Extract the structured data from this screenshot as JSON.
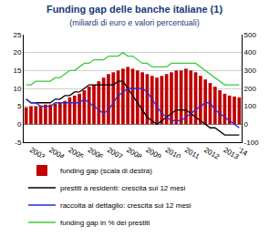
{
  "chart_data": {
    "type": "bar",
    "title": "Funding gap delle banche italiane (1)",
    "subtitle": "(miliardi di euro e valori percentuali)",
    "categories": [
      null,
      "2003",
      null,
      null,
      null,
      "2004",
      null,
      null,
      null,
      "2005",
      null,
      null,
      null,
      "2006",
      null,
      null,
      null,
      "2007",
      null,
      null,
      null,
      "2008",
      null,
      null,
      null,
      "2009",
      null,
      null,
      null,
      "2010",
      null,
      null,
      null,
      "2011",
      null,
      null,
      null,
      "2012",
      null,
      null,
      null,
      "2013",
      null,
      null,
      "'14"
    ],
    "series": [
      {
        "name": "funding gap (scala di destra)",
        "type": "bar",
        "axis": "y2",
        "color": "#c00000",
        "values": [
          95,
          100,
          100,
          105,
          110,
          110,
          115,
          120,
          130,
          150,
          160,
          170,
          190,
          210,
          220,
          240,
          260,
          280,
          290,
          300,
          310,
          320,
          310,
          300,
          290,
          280,
          270,
          260,
          270,
          280,
          290,
          300,
          300,
          310,
          300,
          290,
          270,
          250,
          230,
          210,
          190,
          170,
          160,
          155,
          150
        ]
      },
      {
        "name": "prestiti a residenti: crescita sui 12 mesi",
        "type": "line",
        "axis": "y",
        "color": "#000000",
        "values": [
          7,
          6,
          6,
          6,
          6,
          6,
          7,
          7,
          8,
          8,
          9,
          9,
          10,
          11,
          11,
          11,
          11,
          11,
          11,
          12,
          12,
          10,
          8,
          6,
          4,
          2,
          1,
          0,
          1,
          2,
          3,
          4,
          4,
          4,
          3,
          2,
          1,
          0,
          -1,
          -1,
          -2,
          -3,
          -3,
          -3,
          -3
        ]
      },
      {
        "name": "raccolta al dettaglio: crescita sui 12 mesi",
        "type": "line",
        "axis": "y",
        "color": "#2b2bd0",
        "values": [
          7,
          6,
          6,
          5,
          5,
          5,
          6,
          6,
          6,
          6,
          6,
          6,
          7,
          6,
          5,
          4,
          3,
          4,
          6,
          8,
          9,
          10,
          10,
          10,
          10,
          9,
          7,
          5,
          3,
          2,
          1,
          1,
          1,
          2,
          3,
          4,
          5,
          6,
          6,
          4,
          3,
          2,
          1,
          0,
          -1
        ]
      },
      {
        "name": "funding gap in % dei prestiti",
        "type": "line",
        "axis": "y",
        "color": "#3cc83c",
        "values": [
          11,
          11,
          12,
          12,
          12,
          12,
          13,
          13,
          14,
          15,
          15,
          16,
          17,
          17,
          18,
          18,
          18,
          19,
          19,
          19,
          20,
          19,
          19,
          18,
          17,
          17,
          16,
          16,
          16,
          16,
          17,
          17,
          17,
          17,
          17,
          17,
          16,
          15,
          14,
          13,
          12,
          11,
          11,
          11,
          11
        ]
      }
    ],
    "ylim": [
      -5,
      25
    ],
    "yticks": [
      -5,
      0,
      5,
      10,
      15,
      20,
      25
    ],
    "y2lim": [
      -100,
      500
    ],
    "y2ticks": [
      -100,
      0,
      100,
      200,
      300,
      400,
      500
    ],
    "grid": true,
    "legend": "bottom"
  }
}
